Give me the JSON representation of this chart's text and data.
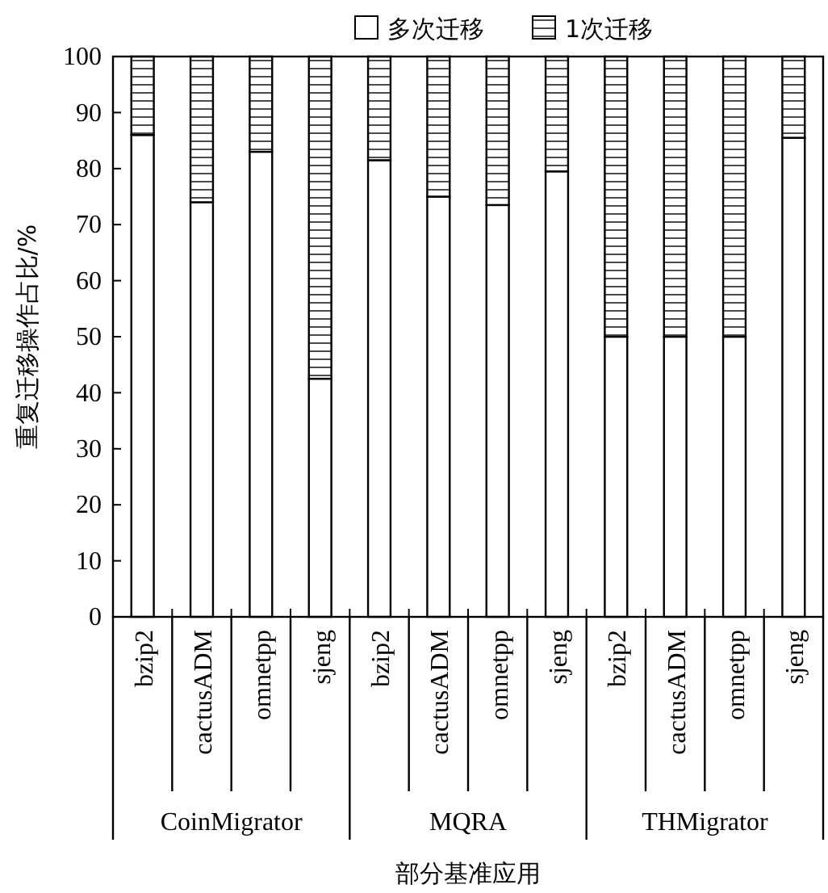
{
  "chart_data": {
    "type": "bar",
    "stacked": true,
    "ylabel": "重复迁移操作占比/%",
    "xlabel": "部分基准应用",
    "categories": [
      "bzip2",
      "cactusADM",
      "omnetpp",
      "sjeng",
      "bzip2",
      "cactusADM",
      "omnetpp",
      "sjeng",
      "bzip2",
      "cactusADM",
      "omnetpp",
      "sjeng"
    ],
    "annotations": [
      "CoinMigrator",
      "MQRA",
      "THMigrator"
    ],
    "series": [
      {
        "name": "多次迁移",
        "color": "#ffffff",
        "values": [
          86,
          74,
          83,
          42.5,
          81.5,
          75,
          73.5,
          79.5,
          50,
          50,
          50,
          85.5
        ]
      },
      {
        "name": "1次迁移",
        "color": "#000000",
        "values": [
          14,
          26,
          17,
          57.5,
          18.5,
          25,
          26.5,
          20.5,
          50,
          50,
          50,
          14.5
        ]
      }
    ],
    "ylim": [
      0,
      100
    ],
    "yticks": [
      0,
      10,
      20,
      30,
      40,
      50,
      60,
      70,
      80,
      90,
      100
    ],
    "grid": false,
    "legend": "top"
  }
}
